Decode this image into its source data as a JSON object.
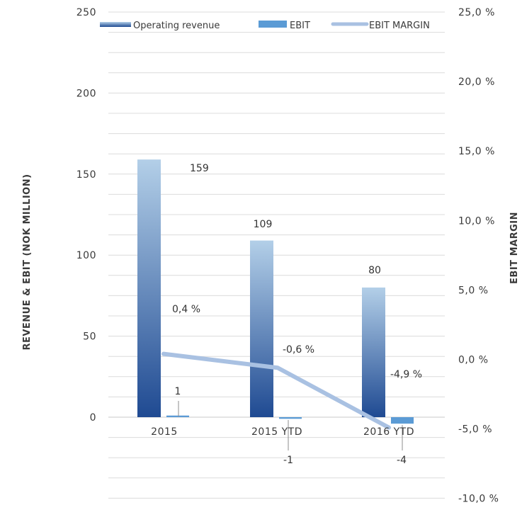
{
  "colors": {
    "revenue_top": "#b3cfe8",
    "revenue_bottom": "#1f4a92",
    "ebit": "#5b9bd5",
    "margin_line": "#a9c1e2",
    "grid": "#dcdcdc",
    "leader": "#8c8c8c"
  },
  "chart_data": {
    "type": "bar",
    "categories": [
      "2015",
      "2015 YTD",
      "2016 YTD"
    ],
    "series": [
      {
        "name": "Operating revenue",
        "type": "bar",
        "axis": "left",
        "values": [
          159,
          109,
          80
        ],
        "labels": [
          "159",
          "109",
          "80"
        ]
      },
      {
        "name": "EBIT",
        "type": "bar",
        "axis": "left",
        "values": [
          1,
          -1,
          -4
        ],
        "labels": [
          "1",
          "-1",
          "-4"
        ]
      },
      {
        "name": "EBIT MARGIN",
        "type": "line",
        "axis": "right",
        "values": [
          0.4,
          -0.6,
          -4.9
        ],
        "labels": [
          "0,4 %",
          "-0,6 %",
          "-4,9 %"
        ]
      }
    ],
    "y_left": {
      "label": "REVENUE & EBIT (NOK MILLION)",
      "range": [
        -50,
        250
      ],
      "ticks": [
        0,
        50,
        100,
        150,
        200,
        250
      ],
      "tick_labels": [
        "0",
        "50",
        "100",
        "150",
        "200",
        "250"
      ]
    },
    "y_right": {
      "label": "EBIT MARGIN",
      "range": [
        -10,
        25
      ],
      "ticks": [
        -10,
        -5,
        0,
        5,
        10,
        15,
        20,
        25
      ],
      "tick_labels": [
        "-10,0 %",
        "-5,0 %",
        "0,0 %",
        "5,0 %",
        "10,0 %",
        "15,0 %",
        "20,0 %",
        "25,0 %"
      ]
    },
    "legend": {
      "position": "top",
      "items": [
        "Operating revenue",
        "EBIT",
        "EBIT MARGIN"
      ]
    },
    "grid": true
  }
}
